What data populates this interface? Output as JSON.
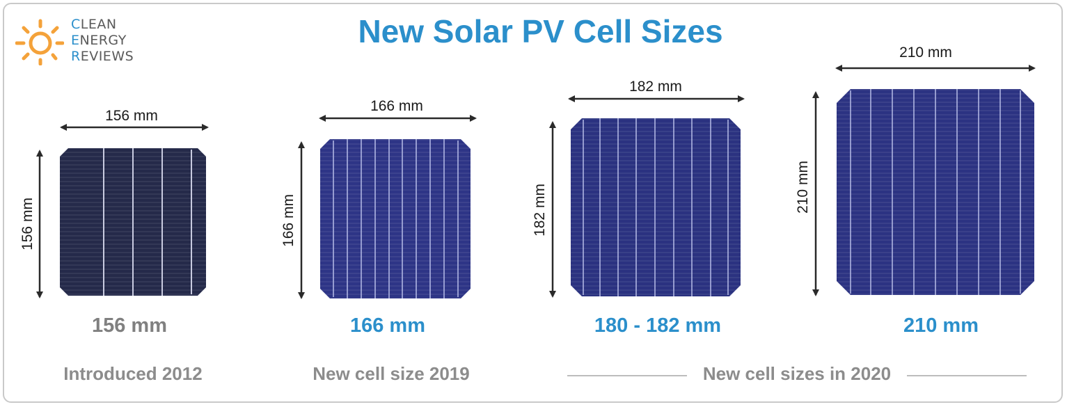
{
  "title": "New Solar PV Cell Sizes",
  "logo": {
    "line1_first": "C",
    "line1_rest": "LEAN",
    "line2_first": "E",
    "line2_rest": "NERGY",
    "line3_first": "R",
    "line3_rest": "EVIEWS"
  },
  "cells": [
    {
      "width_label": "156 mm",
      "height_label": "156 mm",
      "caption": "156 mm",
      "caption_color": "#808080",
      "cell_color": "#252a4a"
    },
    {
      "width_label": "166 mm",
      "height_label": "166 mm",
      "caption": "166 mm",
      "caption_color": "#2b8fcb",
      "cell_color": "#2e3586"
    },
    {
      "width_label": "182 mm",
      "height_label": "182 mm",
      "caption": "180 - 182 mm",
      "caption_color": "#2b8fcb",
      "cell_color": "#2b3280"
    },
    {
      "width_label": "210 mm",
      "height_label": "210 mm",
      "caption": "210 mm",
      "caption_color": "#2b8fcb",
      "cell_color": "#2c3382"
    }
  ],
  "subtitles": {
    "s2012": "Introduced 2012",
    "s2019": "New cell size 2019",
    "s2020": "New cell sizes in 2020"
  },
  "colors": {
    "accent": "#2b8fcb",
    "gray_text": "#8c8c8c",
    "sun_orange": "#f4a23a"
  }
}
